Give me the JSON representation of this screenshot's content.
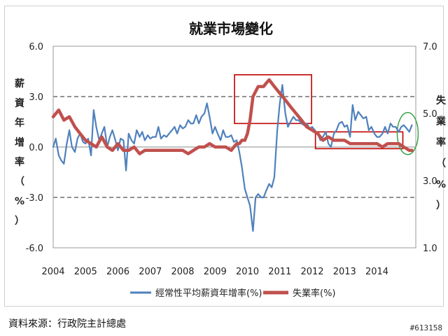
{
  "chart_data": {
    "type": "line",
    "title": "就業市場變化",
    "left_axis_label": [
      "薪",
      "資",
      "年",
      "增",
      "率",
      "（",
      "%",
      "）"
    ],
    "right_axis_label": [
      "失",
      "業",
      "率",
      "（",
      "%",
      "）"
    ],
    "years": [
      "2004",
      "2005",
      "2006",
      "2007",
      "2008",
      "2009",
      "2010",
      "2011",
      "2012",
      "2013",
      "2014"
    ],
    "left_ticks": [
      "6.0",
      "3.0",
      "0.0",
      "-3.0",
      "-6.0"
    ],
    "right_ticks": [
      "7.0",
      "5.0",
      "3.0",
      "1.0"
    ],
    "ylim_left": [
      -6,
      6
    ],
    "ylim_right": [
      1,
      7
    ],
    "xlim": [
      2004,
      2015.2
    ],
    "grid": "dashed horizontal at 3.0 and -3.0",
    "legend": {
      "position": "bottom"
    },
    "series": [
      {
        "name": "經常性平均薪資年增率(%)",
        "axis": "left",
        "color": "#4f81bd",
        "x": [
          2004.0,
          2004.08,
          2004.17,
          2004.25,
          2004.33,
          2004.42,
          2004.5,
          2004.58,
          2004.67,
          2004.75,
          2004.83,
          2004.92,
          2005.0,
          2005.08,
          2005.17,
          2005.25,
          2005.33,
          2005.42,
          2005.5,
          2005.58,
          2005.67,
          2005.75,
          2005.83,
          2005.92,
          2006.0,
          2006.08,
          2006.17,
          2006.25,
          2006.33,
          2006.42,
          2006.5,
          2006.58,
          2006.67,
          2006.75,
          2006.83,
          2006.92,
          2007.0,
          2007.08,
          2007.17,
          2007.25,
          2007.33,
          2007.42,
          2007.5,
          2007.58,
          2007.67,
          2007.75,
          2007.83,
          2007.92,
          2008.0,
          2008.08,
          2008.17,
          2008.25,
          2008.33,
          2008.42,
          2008.5,
          2008.58,
          2008.67,
          2008.75,
          2008.83,
          2008.92,
          2009.0,
          2009.08,
          2009.17,
          2009.25,
          2009.33,
          2009.42,
          2009.5,
          2009.58,
          2009.67,
          2009.75,
          2009.83,
          2009.92,
          2010.0,
          2010.08,
          2010.17,
          2010.25,
          2010.33,
          2010.42,
          2010.5,
          2010.58,
          2010.67,
          2010.75,
          2010.83,
          2010.92,
          2011.0,
          2011.08,
          2011.17,
          2011.25,
          2011.33,
          2011.42,
          2011.5,
          2011.58,
          2011.67,
          2011.75,
          2011.83,
          2011.92,
          2012.0,
          2012.08,
          2012.17,
          2012.25,
          2012.33,
          2012.42,
          2012.5,
          2012.58,
          2012.67,
          2012.75,
          2012.83,
          2012.92,
          2013.0,
          2013.08,
          2013.17,
          2013.25,
          2013.33,
          2013.42,
          2013.5,
          2013.58,
          2013.67,
          2013.75,
          2013.83,
          2013.92,
          2014.0,
          2014.08,
          2014.17,
          2014.25,
          2014.33,
          2014.42,
          2014.5,
          2014.58,
          2014.67,
          2014.75,
          2014.83,
          2014.92,
          2015.0,
          2015.08
        ],
        "values": [
          0.0,
          0.5,
          -0.5,
          -0.8,
          -1.0,
          0.2,
          1.0,
          0.0,
          -0.3,
          0.5,
          0.8,
          0.3,
          0.2,
          0.5,
          -0.5,
          2.2,
          1.2,
          0.4,
          0.8,
          1.2,
          0.0,
          0.6,
          1.0,
          0.4,
          -0.2,
          0.5,
          0.4,
          -1.4,
          0.8,
          0.4,
          0.2,
          1.0,
          0.6,
          0.9,
          0.4,
          0.7,
          0.5,
          0.6,
          0.6,
          1.2,
          0.5,
          0.7,
          0.6,
          0.8,
          1.0,
          1.2,
          0.8,
          1.3,
          1.1,
          1.2,
          1.6,
          1.4,
          1.4,
          1.9,
          1.4,
          1.8,
          2.0,
          2.6,
          1.8,
          0.8,
          1.2,
          0.8,
          0.4,
          1.0,
          0.6,
          0.6,
          0.7,
          0.3,
          0.4,
          -0.3,
          -1.2,
          -2.5,
          -3.0,
          -3.5,
          -5.0,
          -3.0,
          -2.8,
          -3.0,
          -3.0,
          -2.6,
          -2.2,
          -2.4,
          -1.8,
          1.0,
          2.6,
          3.7,
          2.0,
          1.2,
          1.5,
          1.8,
          1.6,
          1.6,
          1.4,
          1.3,
          1.4,
          1.1,
          1.2,
          1.0,
          0.8,
          0.4,
          0.6,
          0.9,
          0.2,
          0.0,
          0.8,
          1.0,
          1.4,
          1.5,
          1.2,
          1.3,
          0.6,
          2.5,
          1.6,
          2.1,
          1.9,
          1.7,
          1.8,
          1.0,
          1.2,
          0.8,
          0.6,
          0.6,
          0.8,
          1.2,
          0.8,
          1.4,
          1.2,
          1.2,
          0.9,
          1.2,
          1.3,
          1.1,
          0.9,
          1.3
        ]
      },
      {
        "name": "失業率(%)",
        "axis": "right",
        "color": "#c0504d",
        "x": [
          2004.0,
          2004.17,
          2004.33,
          2004.5,
          2004.67,
          2004.83,
          2005.0,
          2005.17,
          2005.33,
          2005.5,
          2005.67,
          2005.83,
          2006.0,
          2006.17,
          2006.33,
          2006.5,
          2006.67,
          2006.83,
          2007.0,
          2007.17,
          2007.33,
          2007.5,
          2007.67,
          2007.83,
          2008.0,
          2008.17,
          2008.33,
          2008.5,
          2008.67,
          2008.83,
          2009.0,
          2009.17,
          2009.33,
          2009.5,
          2009.58,
          2009.67,
          2009.75,
          2009.83,
          2009.92,
          2010.0,
          2010.08,
          2010.17,
          2010.33,
          2010.5,
          2010.58,
          2010.67,
          2010.83,
          2011.0,
          2011.17,
          2011.33,
          2011.5,
          2011.67,
          2011.83,
          2012.0,
          2012.17,
          2012.33,
          2012.5,
          2012.67,
          2012.83,
          2013.0,
          2013.17,
          2013.33,
          2013.5,
          2013.67,
          2013.83,
          2014.0,
          2014.17,
          2014.33,
          2014.5,
          2014.67,
          2014.83,
          2015.0,
          2015.08
        ],
        "values": [
          4.9,
          5.1,
          4.8,
          4.9,
          4.6,
          4.4,
          4.2,
          4.1,
          4.0,
          4.3,
          4.0,
          3.9,
          4.1,
          3.9,
          3.9,
          4.0,
          3.8,
          3.9,
          3.9,
          3.9,
          3.9,
          3.9,
          3.9,
          3.9,
          3.9,
          3.8,
          3.9,
          4.0,
          4.0,
          4.1,
          4.0,
          4.0,
          4.0,
          3.9,
          4.0,
          4.1,
          4.1,
          4.2,
          4.2,
          4.4,
          4.8,
          5.5,
          5.8,
          5.8,
          5.9,
          6.0,
          5.8,
          5.6,
          5.4,
          5.2,
          5.0,
          4.8,
          4.6,
          4.5,
          4.4,
          4.2,
          4.3,
          4.2,
          4.2,
          4.2,
          4.1,
          4.1,
          4.1,
          4.1,
          4.1,
          4.1,
          4.0,
          4.1,
          4.1,
          4.1,
          4.0,
          3.9,
          3.9
        ]
      }
    ]
  },
  "source_text": "資料來源：行政院主計總處",
  "photo_id": "#613158"
}
